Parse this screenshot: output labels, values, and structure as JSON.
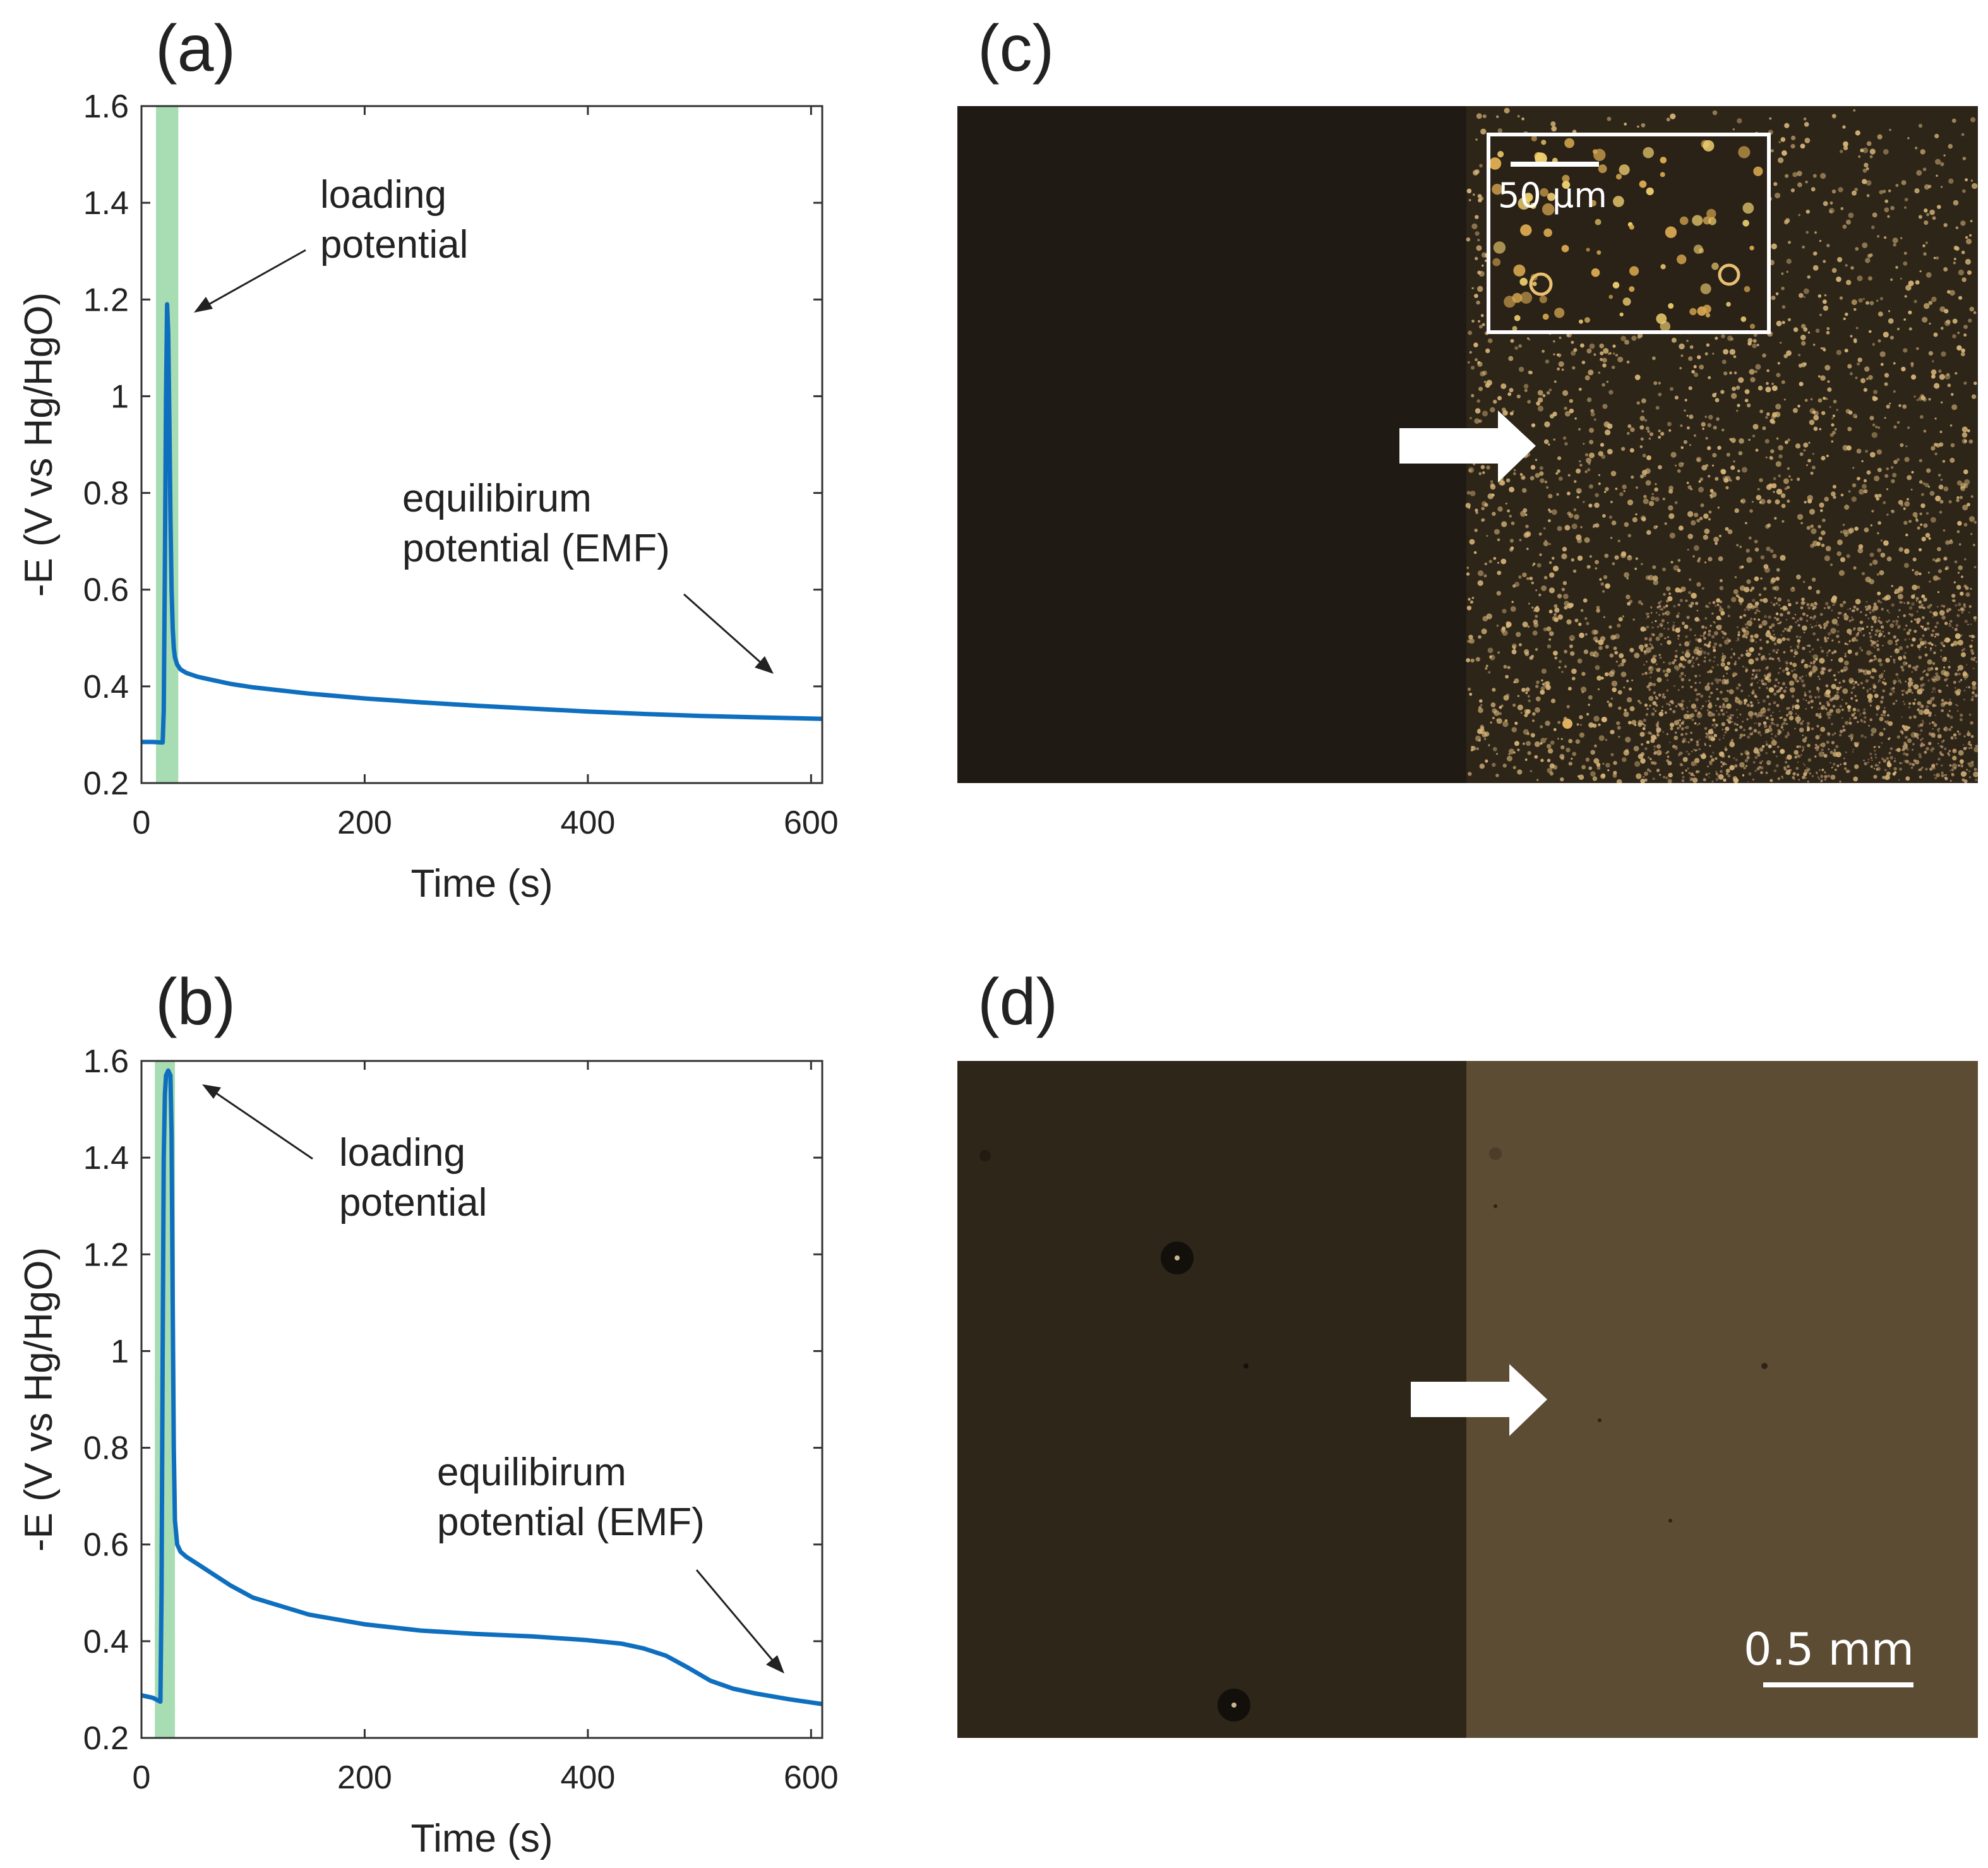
{
  "chart_data": [
    {
      "type": "line",
      "panel_label": "(a)",
      "xlabel": "Time (s)",
      "ylabel": "-E (V vs Hg/HgO)",
      "xlim": [
        0,
        610
      ],
      "ylim": [
        0.2,
        1.6
      ],
      "xticks": [
        0,
        200,
        400,
        600
      ],
      "yticks": [
        0.2,
        0.4,
        0.6,
        0.8,
        1,
        1.2,
        1.4,
        1.6
      ],
      "grid": false,
      "highlight_band": {
        "x": [
          13,
          33
        ],
        "color": "#a8dcb2"
      },
      "series_color": "#0f6fbf",
      "series": [
        {
          "x": [
            0,
            10,
            19,
            20,
            21,
            22,
            23,
            24,
            25,
            26,
            27,
            28,
            29,
            30,
            32,
            35,
            40,
            50,
            60,
            80,
            100,
            150,
            200,
            250,
            300,
            350,
            400,
            450,
            500,
            550,
            610
          ],
          "y": [
            0.285,
            0.285,
            0.284,
            0.35,
            0.65,
            1.0,
            1.19,
            1.13,
            0.95,
            0.75,
            0.6,
            0.52,
            0.48,
            0.46,
            0.445,
            0.435,
            0.428,
            0.42,
            0.415,
            0.405,
            0.398,
            0.385,
            0.375,
            0.367,
            0.36,
            0.354,
            0.348,
            0.343,
            0.339,
            0.336,
            0.333
          ]
        }
      ],
      "annotations": [
        {
          "lines": [
            "loading",
            "potential"
          ]
        },
        {
          "lines": [
            "equilibirum",
            "potential (EMF)"
          ]
        }
      ]
    },
    {
      "type": "line",
      "panel_label": "(b)",
      "xlabel": "Time (s)",
      "ylabel": "-E (V vs Hg/HgO)",
      "xlim": [
        0,
        610
      ],
      "ylim": [
        0.2,
        1.6
      ],
      "xticks": [
        0,
        200,
        400,
        600
      ],
      "yticks": [
        0.2,
        0.4,
        0.6,
        0.8,
        1,
        1.2,
        1.4,
        1.6
      ],
      "grid": false,
      "highlight_band": {
        "x": [
          12,
          30
        ],
        "color": "#a8dcb2"
      },
      "series_color": "#0f6fbf",
      "series": [
        {
          "x": [
            0,
            10,
            17,
            18,
            19,
            20,
            21,
            22,
            24,
            26,
            27,
            28,
            29,
            30,
            32,
            35,
            40,
            50,
            60,
            80,
            100,
            150,
            200,
            250,
            300,
            350,
            400,
            430,
            450,
            470,
            490,
            510,
            530,
            550,
            580,
            610
          ],
          "y": [
            0.288,
            0.283,
            0.275,
            0.5,
            1.0,
            1.4,
            1.53,
            1.57,
            1.58,
            1.57,
            1.45,
            1.1,
            0.8,
            0.65,
            0.6,
            0.585,
            0.575,
            0.56,
            0.545,
            0.515,
            0.49,
            0.455,
            0.435,
            0.422,
            0.415,
            0.41,
            0.402,
            0.395,
            0.385,
            0.37,
            0.345,
            0.318,
            0.302,
            0.292,
            0.28,
            0.27
          ]
        }
      ],
      "annotations": [
        {
          "lines": [
            "loading",
            "potential"
          ]
        },
        {
          "lines": [
            "equilibirum",
            "potential (EMF)"
          ]
        }
      ]
    }
  ],
  "images": [
    {
      "panel_label": "(c)",
      "left_color": "#201a15",
      "right_color": "#2e2519",
      "speck_color": "#d8b77a",
      "inset_scale_label": "50 μm",
      "arrow": "right-arrow-icon"
    },
    {
      "panel_label": "(d)",
      "left_color": "#2d2619",
      "right_color": "#5c4c34",
      "scale_label": "0.5 mm",
      "arrow": "right-arrow-icon"
    }
  ]
}
